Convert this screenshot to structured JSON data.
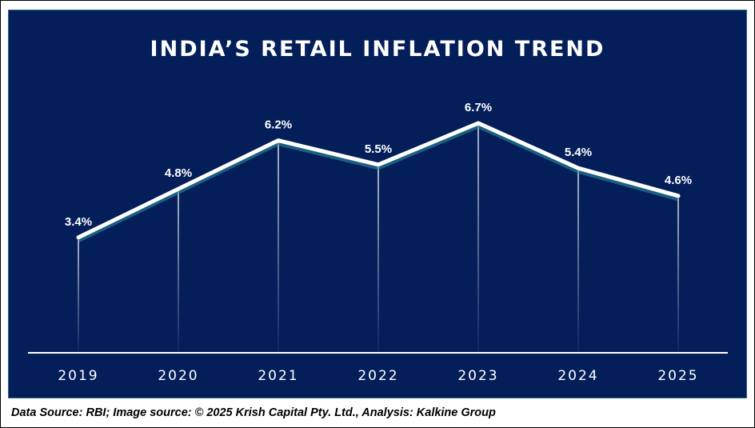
{
  "chart_data": {
    "type": "line",
    "title": "INDIA’S RETAIL INFLATION TREND",
    "categories": [
      "2019",
      "2020",
      "2021",
      "2022",
      "2023",
      "2024",
      "2025"
    ],
    "values": [
      3.4,
      4.8,
      6.2,
      5.5,
      6.7,
      5.4,
      4.6
    ],
    "data_labels": [
      "3.4%",
      "4.8%",
      "6.2%",
      "5.5%",
      "6.7%",
      "5.4%",
      "4.6%"
    ],
    "xlabel": "",
    "ylabel": "",
    "ylim": [
      0,
      7
    ],
    "grid": false,
    "colors": {
      "background": "#041e5a",
      "line": "#ffffff",
      "shadow": "#2b8a9a"
    }
  },
  "footer": "Data Source: RBI; Image source: © 2025 Krish Capital Pty. Ltd., Analysis: Kalkine Group"
}
